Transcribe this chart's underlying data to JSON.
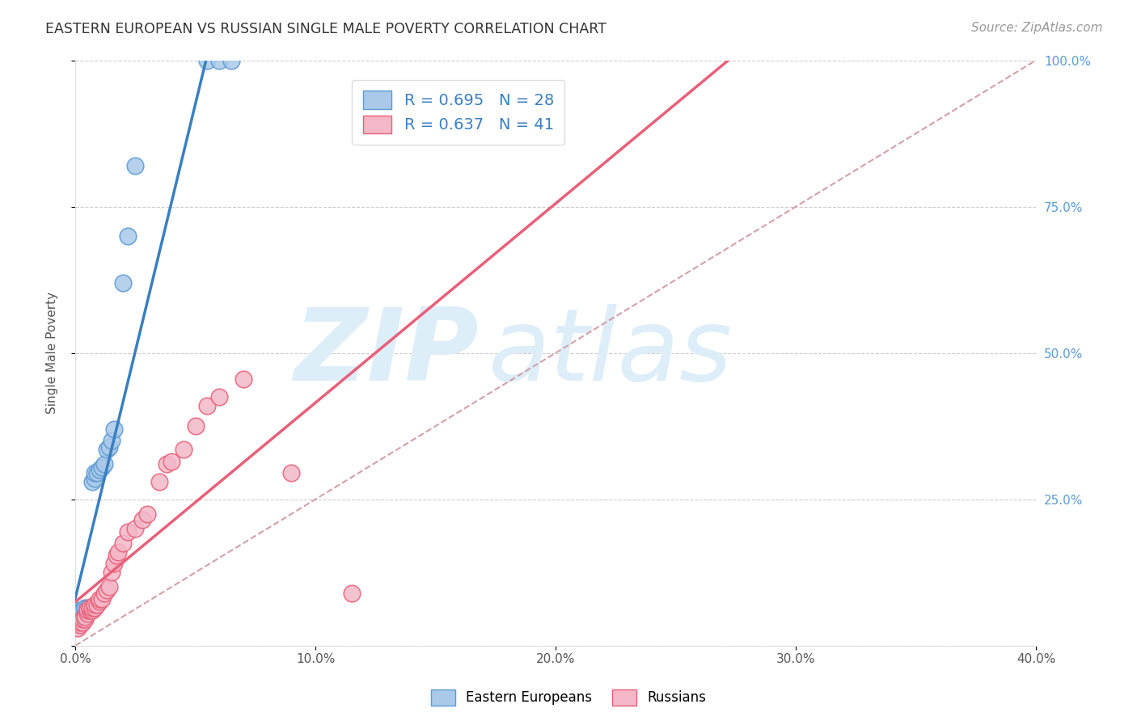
{
  "title": "EASTERN EUROPEAN VS RUSSIAN SINGLE MALE POVERTY CORRELATION CHART",
  "source": "Source: ZipAtlas.com",
  "ylabel": "Single Male Poverty",
  "legend_label1": "Eastern Europeans",
  "legend_label2": "Russians",
  "R1": 0.695,
  "N1": 28,
  "R2": 0.637,
  "N2": 41,
  "xlim": [
    0.0,
    0.4
  ],
  "ylim": [
    0.0,
    1.0
  ],
  "xticks": [
    0.0,
    0.1,
    0.2,
    0.3,
    0.4
  ],
  "xticklabels": [
    "0.0%",
    "10.0%",
    "20.0%",
    "30.0%",
    "40.0%"
  ],
  "yticks": [
    0.0,
    0.25,
    0.5,
    0.75,
    1.0
  ],
  "yticklabels_right": [
    "",
    "25.0%",
    "50.0%",
    "75.0%",
    "100.0%"
  ],
  "color_blue_fill": "#aac9e8",
  "color_blue_edge": "#5b9bd5",
  "color_pink_fill": "#f4b8c8",
  "color_pink_edge": "#e8607a",
  "color_line_blue": "#3a7fc1",
  "color_line_pink": "#e8607a",
  "color_diag": "#d4a0a8",
  "color_ytick": "#5b9bd5",
  "watermark_zip": "ZIP",
  "watermark_atlas": "atlas",
  "watermark_color": "#ddeef8",
  "ee_x": [
    0.001,
    0.002,
    0.003,
    0.003,
    0.004,
    0.004,
    0.005,
    0.005,
    0.006,
    0.006,
    0.007,
    0.007,
    0.008,
    0.008,
    0.009,
    0.01,
    0.011,
    0.012,
    0.013,
    0.014,
    0.015,
    0.016,
    0.02,
    0.022,
    0.025,
    0.055,
    0.06,
    0.065
  ],
  "ee_y": [
    0.055,
    0.06,
    0.055,
    0.06,
    0.06,
    0.065,
    0.06,
    0.065,
    0.06,
    0.065,
    0.065,
    0.28,
    0.285,
    0.295,
    0.295,
    0.3,
    0.305,
    0.31,
    0.335,
    0.34,
    0.35,
    0.37,
    0.62,
    0.7,
    0.82,
    1.0,
    1.0,
    1.0
  ],
  "ru_x": [
    0.001,
    0.002,
    0.002,
    0.003,
    0.003,
    0.004,
    0.004,
    0.005,
    0.005,
    0.006,
    0.006,
    0.007,
    0.007,
    0.008,
    0.008,
    0.009,
    0.01,
    0.01,
    0.011,
    0.012,
    0.013,
    0.014,
    0.015,
    0.016,
    0.017,
    0.018,
    0.02,
    0.022,
    0.025,
    0.028,
    0.03,
    0.035,
    0.038,
    0.04,
    0.045,
    0.05,
    0.055,
    0.06,
    0.07,
    0.09,
    0.115
  ],
  "ru_y": [
    0.03,
    0.035,
    0.04,
    0.04,
    0.045,
    0.045,
    0.05,
    0.055,
    0.06,
    0.06,
    0.065,
    0.06,
    0.065,
    0.065,
    0.07,
    0.07,
    0.075,
    0.08,
    0.08,
    0.09,
    0.095,
    0.1,
    0.125,
    0.14,
    0.155,
    0.16,
    0.175,
    0.195,
    0.2,
    0.215,
    0.225,
    0.28,
    0.31,
    0.315,
    0.335,
    0.375,
    0.41,
    0.425,
    0.455,
    0.295,
    0.09
  ]
}
